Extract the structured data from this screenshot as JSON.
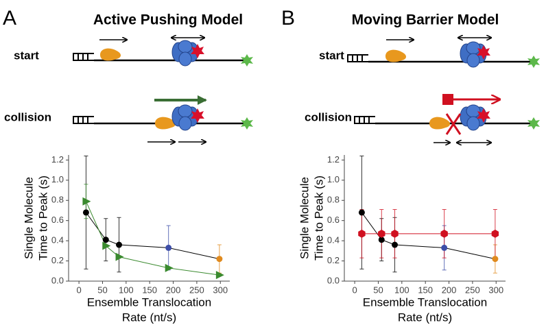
{
  "panels": [
    {
      "label": "A",
      "title": "Active Pushing Model",
      "rows": [
        "start",
        "collision"
      ]
    },
    {
      "label": "B",
      "title": "Moving Barrier Model",
      "rows": [
        "start",
        "collision"
      ]
    }
  ],
  "chart_data": [
    {
      "type": "line",
      "x": [
        15,
        57,
        85,
        190,
        298
      ],
      "xlim": [
        -22,
        320
      ],
      "ylim": [
        0,
        1.25
      ],
      "xticks": [
        0,
        50,
        100,
        150,
        200,
        250,
        300
      ],
      "yticks": [
        {
          "value": 0,
          "label": "0.0"
        },
        0.2,
        0.4,
        0.6,
        0.8,
        {
          "value": 1,
          "label": "1.0"
        },
        1.2
      ],
      "xlabel": [
        "Ensemble Translocation",
        "Rate (nt/s)"
      ],
      "ylabel": [
        "Single Molecule",
        "Time to Peak (s)"
      ],
      "series": [
        {
          "color": "#000000",
          "marker": "circle",
          "point_colors": [
            "#000000",
            "#000000",
            "#000000",
            "#3d4ea8",
            "#e08a1e"
          ],
          "values": [
            0.68,
            0.41,
            0.36,
            0.33,
            0.22
          ],
          "errors": [
            0.56,
            0.21,
            0.27,
            0.22,
            0.14
          ]
        },
        {
          "color": "#3a8a2e",
          "marker": "triangle",
          "point_colors": [
            "#3a8a2e",
            "#3a8a2e",
            "#3a8a2e",
            "#3a8a2e",
            "#3a8a2e"
          ],
          "values": [
            0.79,
            0.35,
            0.24,
            0.13,
            0.06
          ],
          "errors": [
            0.17,
            null,
            null,
            null,
            null
          ]
        }
      ]
    },
    {
      "type": "line",
      "x": [
        15,
        57,
        85,
        190,
        298
      ],
      "xlim": [
        -22,
        320
      ],
      "ylim": [
        0,
        1.25
      ],
      "xticks": [
        0,
        50,
        100,
        150,
        200,
        250,
        300
      ],
      "yticks": [
        {
          "value": 0,
          "label": "0.0"
        },
        0.2,
        0.4,
        0.6,
        0.8,
        {
          "value": 1,
          "label": "1.0"
        },
        1.2
      ],
      "xlabel": [
        "Ensemble Translocation",
        "Rate (nt/s)"
      ],
      "ylabel": [
        "Single Molecule",
        "Time to Peak (s)"
      ],
      "series": [
        {
          "color": "#000000",
          "marker": "circle",
          "point_colors": [
            "#000000",
            "#000000",
            "#000000",
            "#3d4ea8",
            "#e08a1e"
          ],
          "values": [
            0.68,
            0.41,
            0.36,
            0.33,
            0.22
          ],
          "errors": [
            0.56,
            0.21,
            0.27,
            0.22,
            0.14
          ]
        },
        {
          "color": "#d01020",
          "marker": "hexagon",
          "point_colors": [
            "#d01020",
            "#d01020",
            "#d01020",
            "#d01020",
            "#d01020"
          ],
          "values": [
            0.47,
            0.47,
            0.47,
            0.47,
            0.47
          ],
          "errors": [
            0.24,
            0.24,
            0.24,
            0.24,
            0.24
          ]
        }
      ]
    }
  ]
}
